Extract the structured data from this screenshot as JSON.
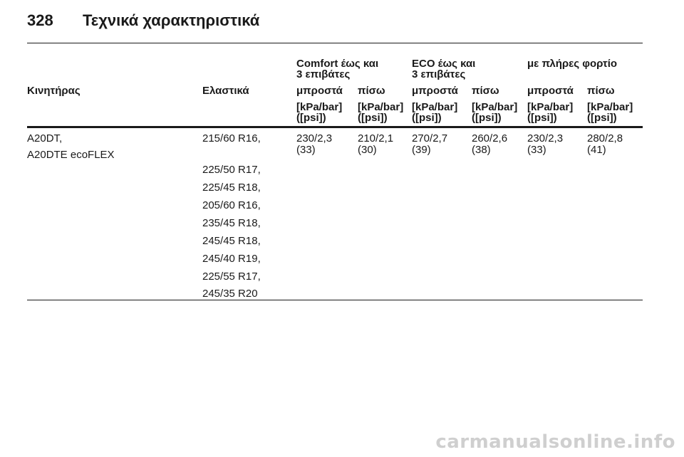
{
  "page": {
    "number": "328",
    "title": "Τεχνικά χαρακτηριστικά"
  },
  "table": {
    "group_headers": {
      "comfort": [
        "Comfort έως και",
        "3 επιβάτες"
      ],
      "eco": [
        "ECO έως και",
        "3 επιβάτες"
      ],
      "full_load": "με πλήρες φορτίο"
    },
    "column_headers": {
      "engine": "Κινητήρας",
      "tyres": "Ελαστικά",
      "front": "μπροστά",
      "rear": "πίσω"
    },
    "unit_lines": [
      "[kPa/bar]",
      "([psi])"
    ],
    "row": {
      "engines": [
        "A20DT,",
        "A20DTE ecoFLEX"
      ],
      "tyres": [
        "215/60 R16,",
        "225/50 R17,",
        "225/45 R18,",
        "205/60 R16,",
        "235/45 R18,",
        "245/45 R18,",
        "245/40 R19,",
        "225/55 R17,",
        "245/35 R20"
      ],
      "pressures": [
        {
          "column": "comfort-front",
          "kpa_bar": "230/2,3",
          "psi": "(33)"
        },
        {
          "column": "comfort-rear",
          "kpa_bar": "210/2,1",
          "psi": "(30)"
        },
        {
          "column": "eco-front",
          "kpa_bar": "270/2,7",
          "psi": "(39)"
        },
        {
          "column": "eco-rear",
          "kpa_bar": "260/2,6",
          "psi": "(38)"
        },
        {
          "column": "full-load-front",
          "kpa_bar": "230/2,3",
          "psi": "(33)"
        },
        {
          "column": "full-load-rear",
          "kpa_bar": "280/2,8",
          "psi": "(41)"
        }
      ]
    }
  },
  "watermark": "carmanualsonline.info"
}
